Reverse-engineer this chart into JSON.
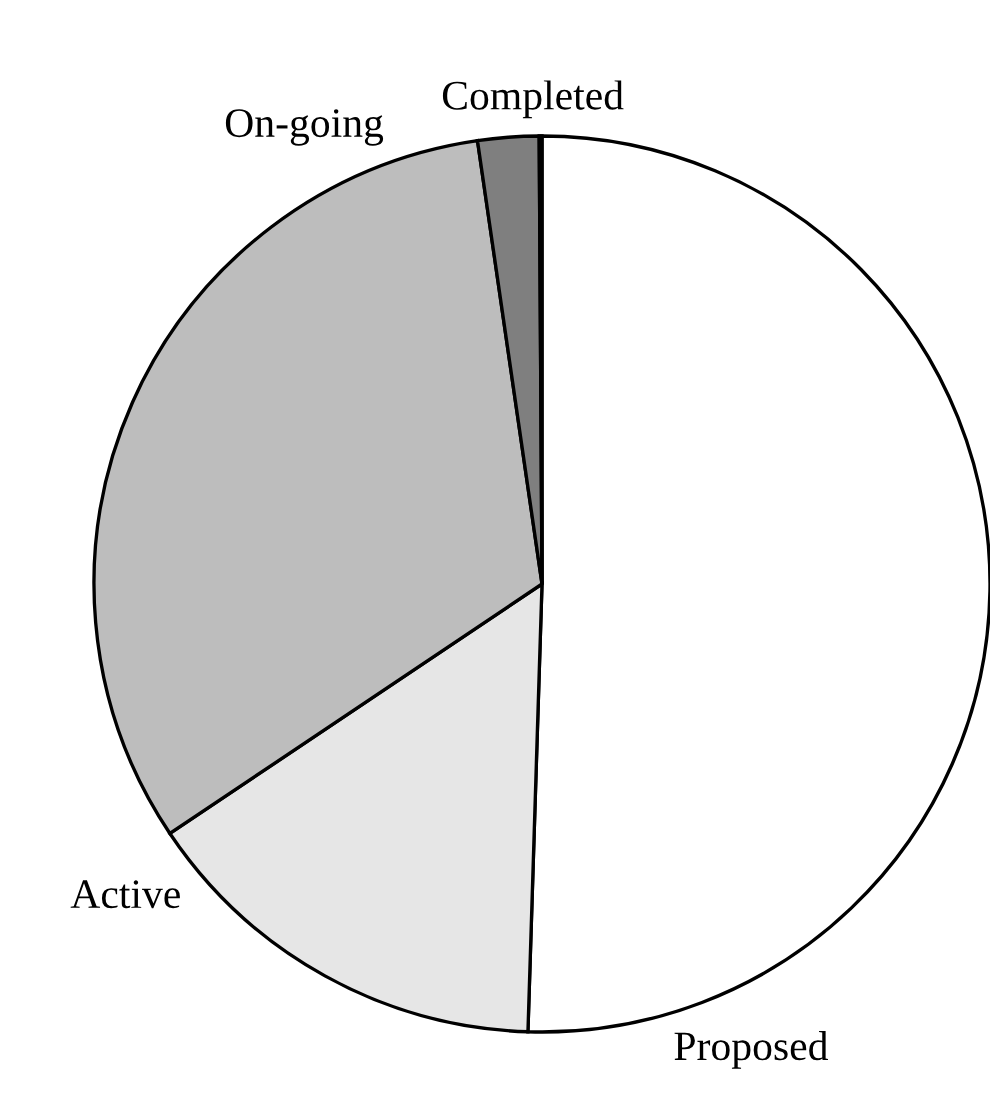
{
  "chart_data": {
    "type": "pie",
    "categories": [
      "Proposed",
      "Active",
      "On-going",
      "Completed",
      null
    ],
    "values": [
      50.5,
      15.1,
      32.1,
      2.2,
      0.1
    ],
    "colors": [
      "#ffffff",
      "#e6e6e6",
      "#bdbdbd",
      "#7f7f7f",
      "#000000"
    ]
  }
}
